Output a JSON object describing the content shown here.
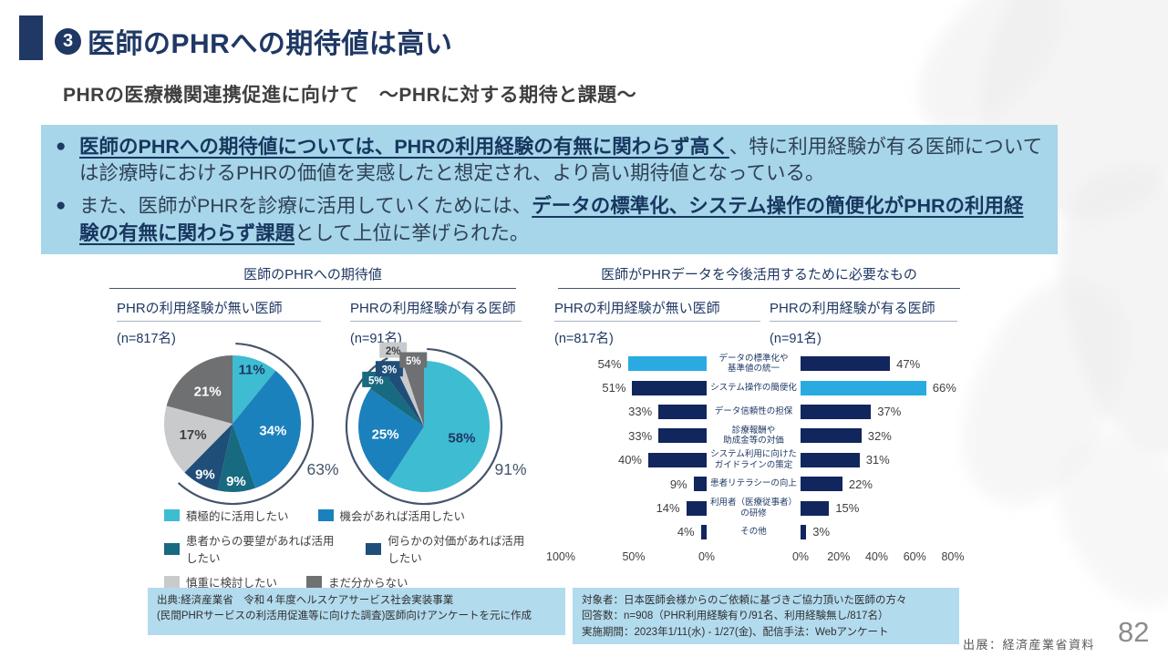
{
  "page": {
    "title_badge": "3",
    "title": "医師のPHRへの期待値は高い",
    "subtitle": "PHRの医療機関連携促進に向けて　～PHRに対する期待と課題～",
    "footer_source": "出展：経済産業省資料",
    "page_number": "82"
  },
  "summary_box": {
    "marker": "●",
    "bullets": [
      {
        "segments": [
          {
            "text": "医師のPHRへの期待値については、PHRの利用経験の有無に関わらず高く",
            "bold": true
          },
          {
            "text": "、特に利用経験が有る医師については診療時におけるPHRの価値を実感したと想定され、より高い期待値となっている。",
            "bold": false
          }
        ]
      },
      {
        "segments": [
          {
            "text": "また、医師がPHRを診療に活用していくためには、",
            "bold": false
          },
          {
            "text": "データの標準化、システム操作の簡便化がPHRの利用経験の有無に関わらず課題",
            "bold": true
          },
          {
            "text": "として上位に挙げられた。",
            "bold": false
          }
        ]
      }
    ]
  },
  "chart_data": [
    {
      "type": "pie",
      "title": "医師のPHRへの期待値",
      "legend": [
        "積極的に活用したい",
        "機会があれば活用したい",
        "患者からの要望があれば活用したい",
        "何らかの対価があれば活用したい",
        "慎重に検討したい",
        "まだ分からない"
      ],
      "legend_position": "bottom",
      "colors": [
        "#3EBCD2",
        "#1A81BC",
        "#186A80",
        "#1F4E79",
        "#C9CACB",
        "#6E7072"
      ],
      "label_colors": [
        "#1F3864",
        "#FFFFFF",
        "#FFFFFF",
        "#FFFFFF",
        "#404040",
        "#FFFFFF"
      ],
      "charts": [
        {
          "subtitle": "PHRの利用経験が無い医師",
          "n_label": "(n=817名)",
          "values": [
            11,
            34,
            9,
            9,
            17,
            21
          ],
          "labels": [
            "11%",
            "34%",
            "9%",
            "9%",
            "17%",
            "21%"
          ],
          "bracket_total": "63%",
          "bracket_slices": 4,
          "radius": 75
        },
        {
          "subtitle": "PHRの利用経験が有る医師",
          "n_label": "(n=91名)",
          "values": [
            58,
            25,
            5,
            3,
            2,
            5
          ],
          "labels": [
            "58%",
            "25%",
            "5%",
            "3%",
            "2%",
            "5%"
          ],
          "bracket_total": "91%",
          "bracket_slices": 4,
          "radius": 72
        }
      ]
    },
    {
      "type": "bar",
      "title": "医師がPHRデータを今後活用するために必要なもの",
      "categories": [
        "データの標準化や\n基準値の統一",
        "システム操作の簡便化",
        "データ信頼性の担保",
        "診療報酬や\n助成金等の対価",
        "システム利用に向けた\nガイドラインの策定",
        "患者リテラシーの向上",
        "利用者（医療従事者）\nの研修",
        "その他"
      ],
      "bar_color": "#12265E",
      "highlight_color": "#29ABE2",
      "left": {
        "subtitle": "PHRの利用経験が無い医師",
        "n_label": "(n=817名)",
        "values": [
          54,
          51,
          33,
          33,
          40,
          9,
          14,
          4
        ],
        "value_labels": [
          "54%",
          "51%",
          "33%",
          "33%",
          "40%",
          "9%",
          "14%",
          "4%"
        ],
        "axis_ticks": [
          "100%",
          "50%",
          "0%"
        ],
        "axis_max": 100,
        "highlight_index": 0
      },
      "right": {
        "subtitle": "PHRの利用経験が有る医師",
        "n_label": "(n=91名)",
        "values": [
          47,
          66,
          37,
          32,
          31,
          22,
          15,
          3
        ],
        "value_labels": [
          "47%",
          "66%",
          "37%",
          "32%",
          "31%",
          "22%",
          "15%",
          "3%"
        ],
        "axis_ticks": [
          "0%",
          "20%",
          "40%",
          "60%",
          "80%"
        ],
        "axis_max": 80,
        "highlight_index": 1
      }
    }
  ],
  "notes": {
    "left_lines": [
      "出典:経済産業省　令和４年度ヘルスケアサービス社会実装事業",
      "(民間PHRサービスの利活用促進等に向けた調査)医師向けアンケートを元に作成"
    ],
    "right_lines": [
      "対象者：日本医師会様からのご依頼に基づきご協力頂いた医師の方々",
      "回答数：n=908（PHR利用経験有り/91名、利用経験無し/817名）",
      "実施期間：2023年1/11(水) - 1/27(金)、配信手法：Webアンケート"
    ]
  }
}
